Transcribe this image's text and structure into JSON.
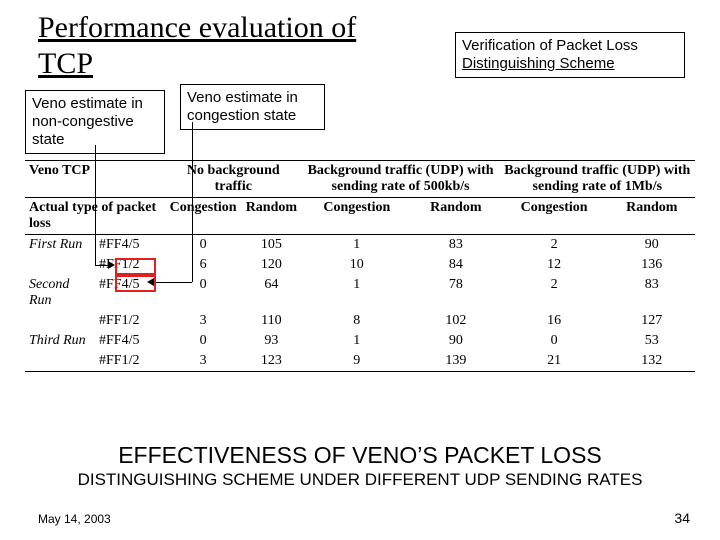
{
  "title_line1": "Performance evaluation of",
  "title_line2": "TCP",
  "callout_right_l1": "Verification of Packet Loss",
  "callout_right_l2": "Distinguishing Scheme",
  "callout_left": "Veno estimate in non-congestive state",
  "callout_mid": "Veno estimate in congestion state",
  "table": {
    "header_row1": [
      "Veno TCP",
      "",
      "No background traffic",
      "",
      "Background traffic (UDP) with sending rate of 500kb/s",
      "",
      "Background traffic (UDP) with sending rate of 1Mb/s",
      ""
    ],
    "header_row2": [
      "Actual type of packet loss",
      "",
      "Congestion",
      "Random",
      "Congestion",
      "Random",
      "Congestion",
      "Random"
    ],
    "rows": [
      {
        "group": "First Run",
        "metric": "#FF4/5",
        "vals": [
          "0",
          "105",
          "1",
          "83",
          "2",
          "90"
        ]
      },
      {
        "group": "",
        "metric": "#FF1/2",
        "vals": [
          "6",
          "120",
          "10",
          "84",
          "12",
          "136"
        ]
      },
      {
        "group": "Second Run",
        "metric": "#FF4/5",
        "vals": [
          "0",
          "64",
          "1",
          "78",
          "2",
          "83"
        ]
      },
      {
        "group": "",
        "metric": "#FF1/2",
        "vals": [
          "3",
          "110",
          "8",
          "102",
          "16",
          "127"
        ]
      },
      {
        "group": "Third Run",
        "metric": "#FF4/5",
        "vals": [
          "0",
          "93",
          "1",
          "90",
          "0",
          "53"
        ]
      },
      {
        "group": "",
        "metric": "#FF1/2",
        "vals": [
          "3",
          "123",
          "9",
          "139",
          "21",
          "132"
        ]
      }
    ]
  },
  "bottom_l1": "EFFECTIVENESS OF VENO’S PACKET LOSS",
  "bottom_l2": "DISTINGUISHING SCHEME UNDER DIFFERENT UDP SENDING RATES",
  "footer_date": "May 14, 2003",
  "footer_num": "34",
  "colors": {
    "redbox": "#e02020",
    "text": "#000000",
    "bg": "#ffffff"
  }
}
